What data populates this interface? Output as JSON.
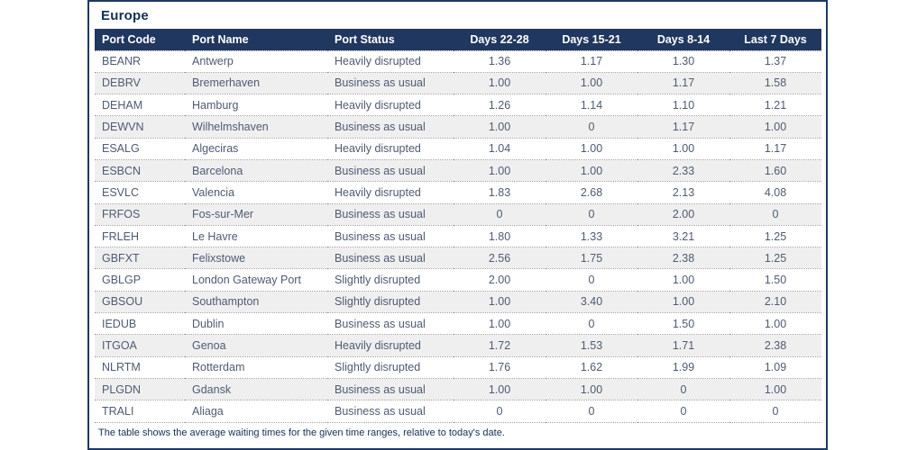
{
  "panel": {
    "title": "Europe",
    "footer_note": "The table shows the average waiting times for the given time ranges, relative to today's date."
  },
  "chart_data": {
    "type": "table",
    "title": "Europe",
    "columns": [
      "Port Code",
      "Port Name",
      "Port Status",
      "Days 22-28",
      "Days 15-21",
      "Days 8-14",
      "Last 7 Days"
    ],
    "rows": [
      {
        "code": "BEANR",
        "name": "Antwerp",
        "status": "Heavily disrupted",
        "d22_28": "1.36",
        "d15_21": "1.17",
        "d8_14": "1.30",
        "last7": "1.37"
      },
      {
        "code": "DEBRV",
        "name": "Bremerhaven",
        "status": "Business as usual",
        "d22_28": "1.00",
        "d15_21": "1.00",
        "d8_14": "1.17",
        "last7": "1.58"
      },
      {
        "code": "DEHAM",
        "name": "Hamburg",
        "status": "Heavily disrupted",
        "d22_28": "1.26",
        "d15_21": "1.14",
        "d8_14": "1.10",
        "last7": "1.21"
      },
      {
        "code": "DEWVN",
        "name": "Wilhelmshaven",
        "status": "Business as usual",
        "d22_28": "1.00",
        "d15_21": "0",
        "d8_14": "1.17",
        "last7": "1.00"
      },
      {
        "code": "ESALG",
        "name": "Algeciras",
        "status": "Heavily disrupted",
        "d22_28": "1.04",
        "d15_21": "1.00",
        "d8_14": "1.00",
        "last7": "1.17"
      },
      {
        "code": "ESBCN",
        "name": "Barcelona",
        "status": "Business as usual",
        "d22_28": "1.00",
        "d15_21": "1.00",
        "d8_14": "2.33",
        "last7": "1.60"
      },
      {
        "code": "ESVLC",
        "name": "Valencia",
        "status": "Heavily disrupted",
        "d22_28": "1.83",
        "d15_21": "2.68",
        "d8_14": "2.13",
        "last7": "4.08"
      },
      {
        "code": "FRFOS",
        "name": "Fos-sur-Mer",
        "status": "Business as usual",
        "d22_28": "0",
        "d15_21": "0",
        "d8_14": "2.00",
        "last7": "0"
      },
      {
        "code": "FRLEH",
        "name": "Le Havre",
        "status": "Business as usual",
        "d22_28": "1.80",
        "d15_21": "1.33",
        "d8_14": "3.21",
        "last7": "1.25"
      },
      {
        "code": "GBFXT",
        "name": "Felixstowe",
        "status": "Business as usual",
        "d22_28": "2.56",
        "d15_21": "1.75",
        "d8_14": "2.38",
        "last7": "1.25"
      },
      {
        "code": "GBLGP",
        "name": "London Gateway Port",
        "status": "Slightly disrupted",
        "d22_28": "2.00",
        "d15_21": "0",
        "d8_14": "1.00",
        "last7": "1.50"
      },
      {
        "code": "GBSOU",
        "name": "Southampton",
        "status": "Slightly disrupted",
        "d22_28": "1.00",
        "d15_21": "3.40",
        "d8_14": "1.00",
        "last7": "2.10"
      },
      {
        "code": "IEDUB",
        "name": "Dublin",
        "status": "Business as usual",
        "d22_28": "1.00",
        "d15_21": "0",
        "d8_14": "1.50",
        "last7": "1.00"
      },
      {
        "code": "ITGOA",
        "name": "Genoa",
        "status": "Heavily disrupted",
        "d22_28": "1.72",
        "d15_21": "1.53",
        "d8_14": "1.71",
        "last7": "2.38"
      },
      {
        "code": "NLRTM",
        "name": "Rotterdam",
        "status": "Slightly disrupted",
        "d22_28": "1.76",
        "d15_21": "1.62",
        "d8_14": "1.99",
        "last7": "1.09"
      },
      {
        "code": "PLGDN",
        "name": "Gdansk",
        "status": "Business as usual",
        "d22_28": "1.00",
        "d15_21": "1.00",
        "d8_14": "0",
        "last7": "1.00"
      },
      {
        "code": "TRALI",
        "name": "Aliaga",
        "status": "Business as usual",
        "d22_28": "0",
        "d15_21": "0",
        "d8_14": "0",
        "last7": "0"
      }
    ]
  },
  "colors": {
    "accent_navy": "#1f3864",
    "header_bg": "#20375f",
    "header_text": "#ffffff",
    "body_text": "#4e5b73",
    "title_text": "#152f55",
    "stripe": "#efefef"
  }
}
